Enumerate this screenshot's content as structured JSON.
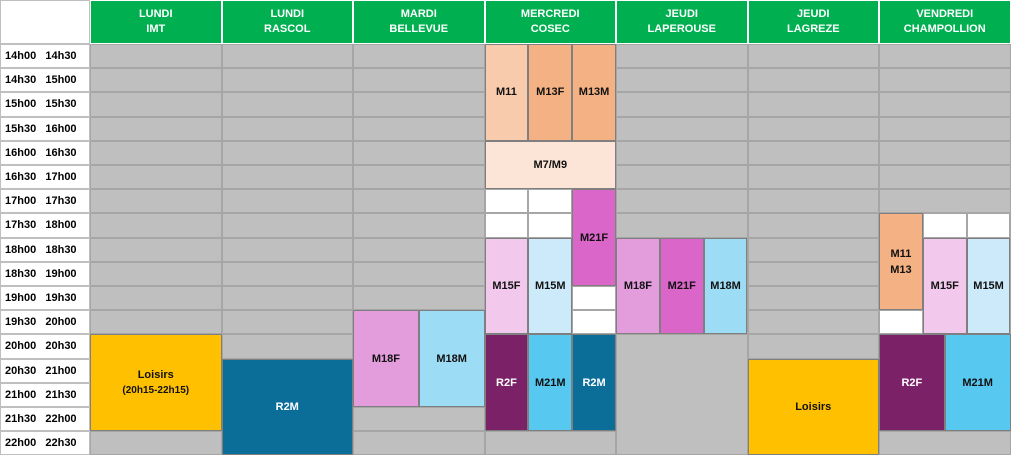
{
  "days": [
    {
      "line1": "LUNDI",
      "line2": "IMT"
    },
    {
      "line1": "LUNDI",
      "line2": "RASCOL"
    },
    {
      "line1": "MARDI",
      "line2": "BELLEVUE"
    },
    {
      "line1": "MERCREDI",
      "line2": "COSEC"
    },
    {
      "line1": "JEUDI",
      "line2": "LAPEROUSE"
    },
    {
      "line1": "JEUDI",
      "line2": "LAGREZE"
    },
    {
      "line1": "VENDREDI",
      "line2": "CHAMPOLLION"
    }
  ],
  "times": [
    "14h00   14h30",
    "14h30   15h00",
    "15h00   15h30",
    "15h30   16h00",
    "16h00   16h30",
    "16h30   17h00",
    "17h00   17h30",
    "17h30   18h00",
    "18h00   18h30",
    "18h30   19h00",
    "19h00   19h30",
    "19h30   20h00",
    "20h00   20h30",
    "20h30   21h00",
    "21h00   21h30",
    "21h30   22h00",
    "22h00   22h30"
  ],
  "colors": {
    "header": "#00b050",
    "empty": "#bfbfbf",
    "orange_light": "#f8cbad",
    "orange": "#f4b183",
    "peach": "#fce4d6",
    "magenta": "#d966c8",
    "pink": "#f2c9ec",
    "light_blue": "#cdeafa",
    "violet": "#e39ddd",
    "sky": "#9ddcf5",
    "gold": "#ffc000",
    "teal": "#0b6e99",
    "plum": "#7b2168",
    "blue": "#57c8f0",
    "white": "#ffffff"
  },
  "blocks": [
    {
      "col": 0,
      "sub": 0,
      "of": 1,
      "span": 1,
      "row": 12,
      "rows": 4,
      "label": "Loisirs",
      "sublabel": "(20h15-22h15)",
      "color": "gold"
    },
    {
      "col": 1,
      "sub": 0,
      "of": 1,
      "span": 1,
      "row": 13,
      "rows": 4,
      "label": "R2M",
      "color": "teal",
      "light": true
    },
    {
      "col": 2,
      "sub": 0,
      "of": 2,
      "span": 1,
      "row": 11,
      "rows": 4,
      "label": "M18F",
      "color": "violet"
    },
    {
      "col": 2,
      "sub": 1,
      "of": 2,
      "span": 1,
      "row": 11,
      "rows": 4,
      "label": "M18M",
      "color": "sky"
    },
    {
      "col": 3,
      "sub": 0,
      "of": 3,
      "span": 1,
      "row": 0,
      "rows": 4,
      "label": "M11",
      "color": "orange_light"
    },
    {
      "col": 3,
      "sub": 1,
      "of": 3,
      "span": 1,
      "row": 0,
      "rows": 4,
      "label": "M13F",
      "color": "orange"
    },
    {
      "col": 3,
      "sub": 2,
      "of": 3,
      "span": 1,
      "row": 0,
      "rows": 4,
      "label": "M13M",
      "color": "orange"
    },
    {
      "col": 3,
      "sub": 0,
      "of": 3,
      "span": 3,
      "row": 4,
      "rows": 2,
      "label": "M7/M9",
      "color": "peach"
    },
    {
      "col": 3,
      "sub": 0,
      "of": 3,
      "span": 1,
      "row": 6,
      "rows": 1,
      "label": "",
      "color": "white"
    },
    {
      "col": 3,
      "sub": 1,
      "of": 3,
      "span": 1,
      "row": 6,
      "rows": 1,
      "label": "",
      "color": "white"
    },
    {
      "col": 3,
      "sub": 0,
      "of": 3,
      "span": 1,
      "row": 7,
      "rows": 1,
      "label": "",
      "color": "white"
    },
    {
      "col": 3,
      "sub": 1,
      "of": 3,
      "span": 1,
      "row": 7,
      "rows": 1,
      "label": "",
      "color": "white"
    },
    {
      "col": 3,
      "sub": 2,
      "of": 3,
      "span": 1,
      "row": 6,
      "rows": 4,
      "label": "M21F",
      "color": "magenta"
    },
    {
      "col": 3,
      "sub": 0,
      "of": 3,
      "span": 1,
      "row": 8,
      "rows": 4,
      "label": "M15F",
      "color": "pink"
    },
    {
      "col": 3,
      "sub": 1,
      "of": 3,
      "span": 1,
      "row": 8,
      "rows": 4,
      "label": "M15M",
      "color": "light_blue"
    },
    {
      "col": 3,
      "sub": 2,
      "of": 3,
      "span": 1,
      "row": 10,
      "rows": 1,
      "label": "",
      "color": "white"
    },
    {
      "col": 3,
      "sub": 2,
      "of": 3,
      "span": 1,
      "row": 11,
      "rows": 1,
      "label": "",
      "color": "white"
    },
    {
      "col": 3,
      "sub": 0,
      "of": 3,
      "span": 1,
      "row": 12,
      "rows": 4,
      "label": "R2F",
      "color": "plum",
      "light": true
    },
    {
      "col": 3,
      "sub": 1,
      "of": 3,
      "span": 1,
      "row": 12,
      "rows": 4,
      "label": "M21M",
      "color": "blue"
    },
    {
      "col": 3,
      "sub": 2,
      "of": 3,
      "span": 1,
      "row": 12,
      "rows": 4,
      "label": "R2M",
      "color": "teal",
      "light": true
    },
    {
      "col": 4,
      "sub": 0,
      "of": 3,
      "span": 1,
      "row": 8,
      "rows": 4,
      "label": "M18F",
      "color": "violet"
    },
    {
      "col": 4,
      "sub": 1,
      "of": 3,
      "span": 1,
      "row": 8,
      "rows": 4,
      "label": "M21F",
      "color": "magenta"
    },
    {
      "col": 4,
      "sub": 2,
      "of": 3,
      "span": 1,
      "row": 8,
      "rows": 4,
      "label": "M18M",
      "color": "sky"
    },
    {
      "col": 4,
      "sub": 0,
      "of": 1,
      "span": 1,
      "row": 12,
      "rows": 5,
      "label": "",
      "color": "empty"
    },
    {
      "col": 5,
      "sub": 0,
      "of": 1,
      "span": 1,
      "row": 13,
      "rows": 4,
      "label": "Loisirs",
      "color": "gold"
    },
    {
      "col": 6,
      "sub": 0,
      "of": 3,
      "span": 1,
      "row": 7,
      "rows": 4,
      "label": "M11",
      "sublabel": "M13",
      "color": "orange"
    },
    {
      "col": 6,
      "sub": 1,
      "of": 3,
      "span": 1,
      "row": 7,
      "rows": 1,
      "label": "",
      "color": "white"
    },
    {
      "col": 6,
      "sub": 2,
      "of": 3,
      "span": 1,
      "row": 7,
      "rows": 1,
      "label": "",
      "color": "white"
    },
    {
      "col": 6,
      "sub": 1,
      "of": 3,
      "span": 1,
      "row": 8,
      "rows": 4,
      "label": "M15F",
      "color": "pink"
    },
    {
      "col": 6,
      "sub": 2,
      "of": 3,
      "span": 1,
      "row": 8,
      "rows": 4,
      "label": "M15M",
      "color": "light_blue"
    },
    {
      "col": 6,
      "sub": 0,
      "of": 3,
      "span": 1,
      "row": 11,
      "rows": 1,
      "label": "",
      "color": "white"
    },
    {
      "col": 6,
      "sub": 0,
      "of": 2,
      "span": 1,
      "row": 12,
      "rows": 4,
      "label": "R2F",
      "color": "plum",
      "light": true
    },
    {
      "col": 6,
      "sub": 1,
      "of": 2,
      "span": 1,
      "row": 12,
      "rows": 4,
      "label": "M21M",
      "color": "blue"
    }
  ]
}
